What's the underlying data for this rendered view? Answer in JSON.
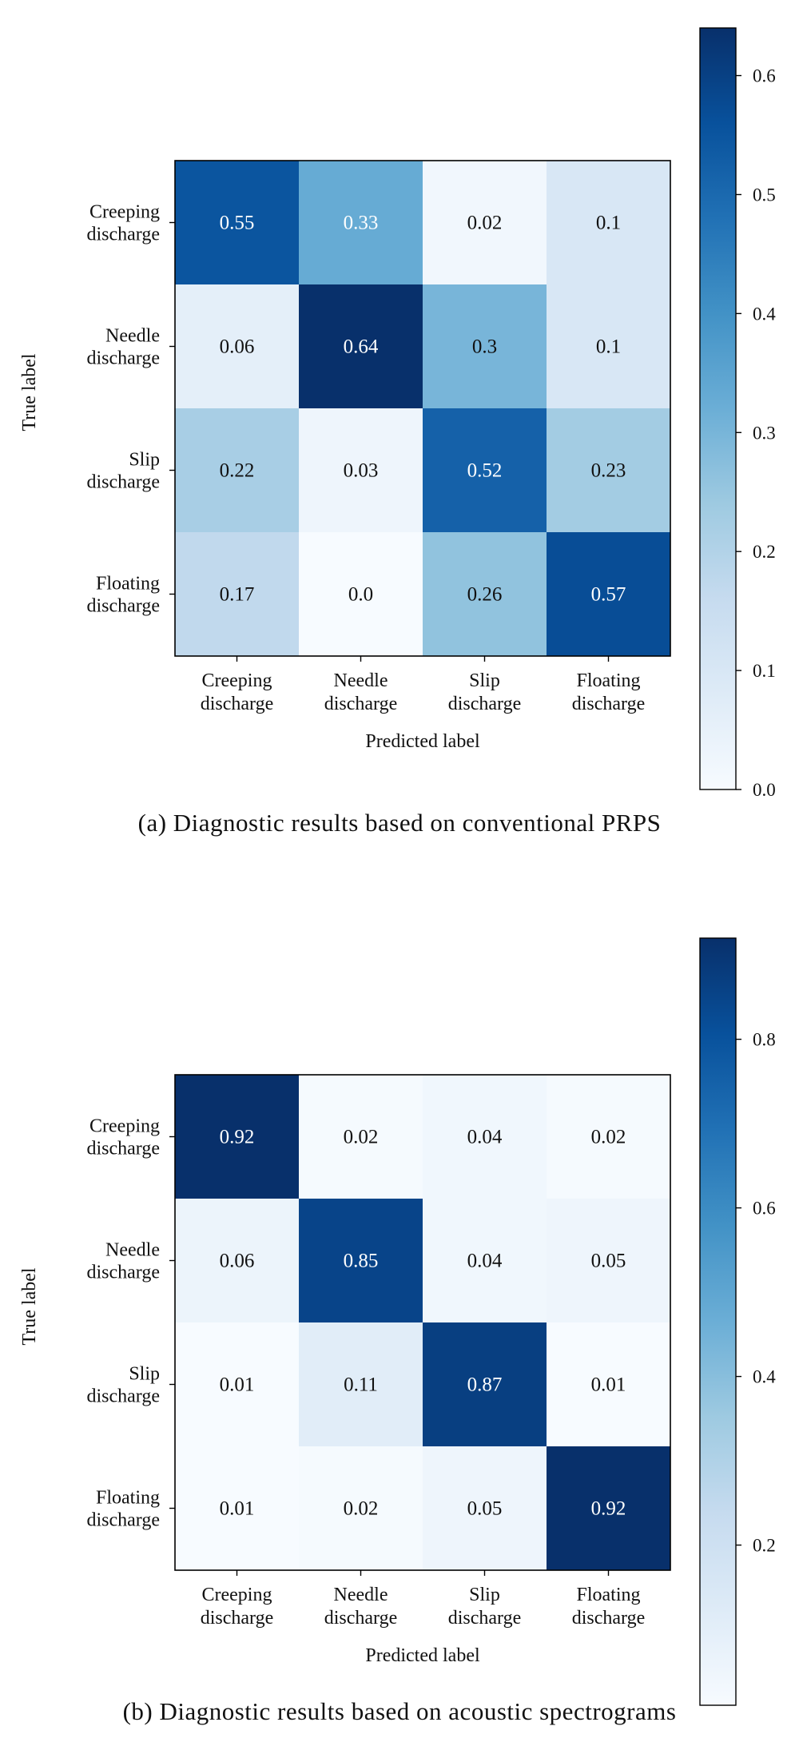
{
  "colors": {
    "colormap": "Blues",
    "frame": "#000000",
    "light_text": "#ffffff",
    "dark_text": "#111111"
  },
  "chart_data": [
    {
      "type": "heatmap",
      "caption": "(a) Diagnostic results based on conventional PRPS",
      "xlabel": "Predicted label",
      "ylabel": "True label",
      "x_categories": [
        [
          "Creeping",
          "discharge"
        ],
        [
          "Needle",
          "discharge"
        ],
        [
          "Slip",
          "discharge"
        ],
        [
          "Floating",
          "discharge"
        ]
      ],
      "y_categories": [
        [
          "Creeping",
          "discharge"
        ],
        [
          "Needle",
          "discharge"
        ],
        [
          "Slip",
          "discharge"
        ],
        [
          "Floating",
          "discharge"
        ]
      ],
      "matrix": [
        [
          0.55,
          0.33,
          0.02,
          0.1
        ],
        [
          0.06,
          0.64,
          0.3,
          0.1
        ],
        [
          0.22,
          0.03,
          0.52,
          0.23
        ],
        [
          0.17,
          0.0,
          0.26,
          0.57
        ]
      ],
      "labels": [
        [
          "0.55",
          "0.33",
          "0.02",
          "0.1"
        ],
        [
          "0.06",
          "0.64",
          "0.3",
          "0.1"
        ],
        [
          "0.22",
          "0.03",
          "0.52",
          "0.23"
        ],
        [
          "0.17",
          "0.0",
          "0.26",
          "0.57"
        ]
      ],
      "colorbar": {
        "min": 0.0,
        "max": 0.64,
        "ticks": [
          0.0,
          0.1,
          0.2,
          0.3,
          0.4,
          0.5,
          0.6
        ],
        "tick_labels": [
          "0.0",
          "0.1",
          "0.2",
          "0.3",
          "0.4",
          "0.5",
          "0.6"
        ]
      }
    },
    {
      "type": "heatmap",
      "caption": "(b) Diagnostic results based on acoustic spectrograms",
      "xlabel": "Predicted label",
      "ylabel": "True label",
      "x_categories": [
        [
          "Creeping",
          "discharge"
        ],
        [
          "Needle",
          "discharge"
        ],
        [
          "Slip",
          "discharge"
        ],
        [
          "Floating",
          "discharge"
        ]
      ],
      "y_categories": [
        [
          "Creeping",
          "discharge"
        ],
        [
          "Needle",
          "discharge"
        ],
        [
          "Slip",
          "discharge"
        ],
        [
          "Floating",
          "discharge"
        ]
      ],
      "matrix": [
        [
          0.92,
          0.02,
          0.04,
          0.02
        ],
        [
          0.06,
          0.85,
          0.04,
          0.05
        ],
        [
          0.01,
          0.11,
          0.87,
          0.01
        ],
        [
          0.01,
          0.02,
          0.05,
          0.92
        ]
      ],
      "labels": [
        [
          "0.92",
          "0.02",
          "0.04",
          "0.02"
        ],
        [
          "0.06",
          "0.85",
          "0.04",
          "0.05"
        ],
        [
          "0.01",
          "0.11",
          "0.87",
          "0.01"
        ],
        [
          "0.01",
          "0.02",
          "0.05",
          "0.92"
        ]
      ],
      "colorbar": {
        "min": 0.01,
        "max": 0.92,
        "ticks": [
          0.2,
          0.4,
          0.6,
          0.8
        ],
        "tick_labels": [
          "0.2",
          "0.4",
          "0.6",
          "0.8"
        ]
      }
    }
  ]
}
